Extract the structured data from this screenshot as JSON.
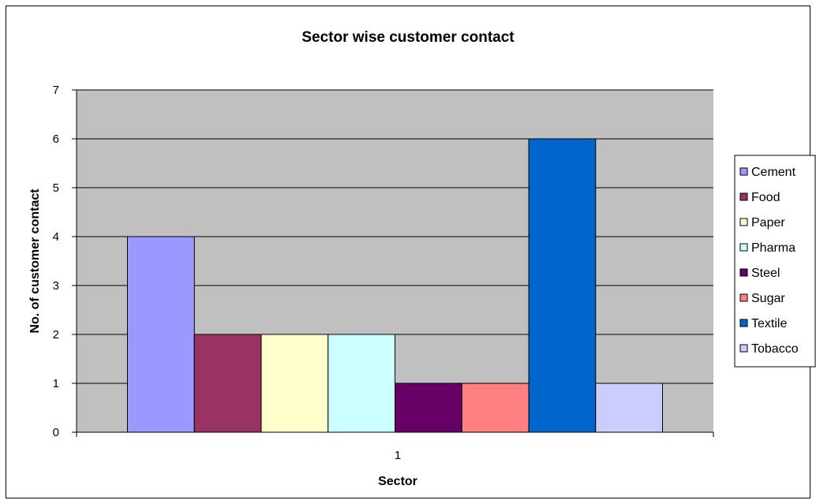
{
  "chart_data": {
    "type": "bar",
    "title": "Sector wise customer contact",
    "xlabel": "Sector",
    "ylabel": "No. of customer contact",
    "categories": [
      "1"
    ],
    "series": [
      {
        "name": "Cement",
        "values": [
          4
        ],
        "color": "#9999FF"
      },
      {
        "name": "Food",
        "values": [
          2
        ],
        "color": "#993366"
      },
      {
        "name": "Paper",
        "values": [
          2
        ],
        "color": "#FFFFCC"
      },
      {
        "name": "Pharma",
        "values": [
          2
        ],
        "color": "#CCFFFF"
      },
      {
        "name": "Steel",
        "values": [
          1
        ],
        "color": "#660066"
      },
      {
        "name": "Sugar",
        "values": [
          1
        ],
        "color": "#FF8080"
      },
      {
        "name": "Textile",
        "values": [
          6
        ],
        "color": "#0066CC"
      },
      {
        "name": "Tobacco",
        "values": [
          1
        ],
        "color": "#CCCCFF"
      }
    ],
    "ylim": [
      0,
      7
    ],
    "yticks": [
      0,
      1,
      2,
      3,
      4,
      5,
      6,
      7
    ],
    "grid": true,
    "plot_background": "#C0C0C0",
    "legend": "right"
  }
}
